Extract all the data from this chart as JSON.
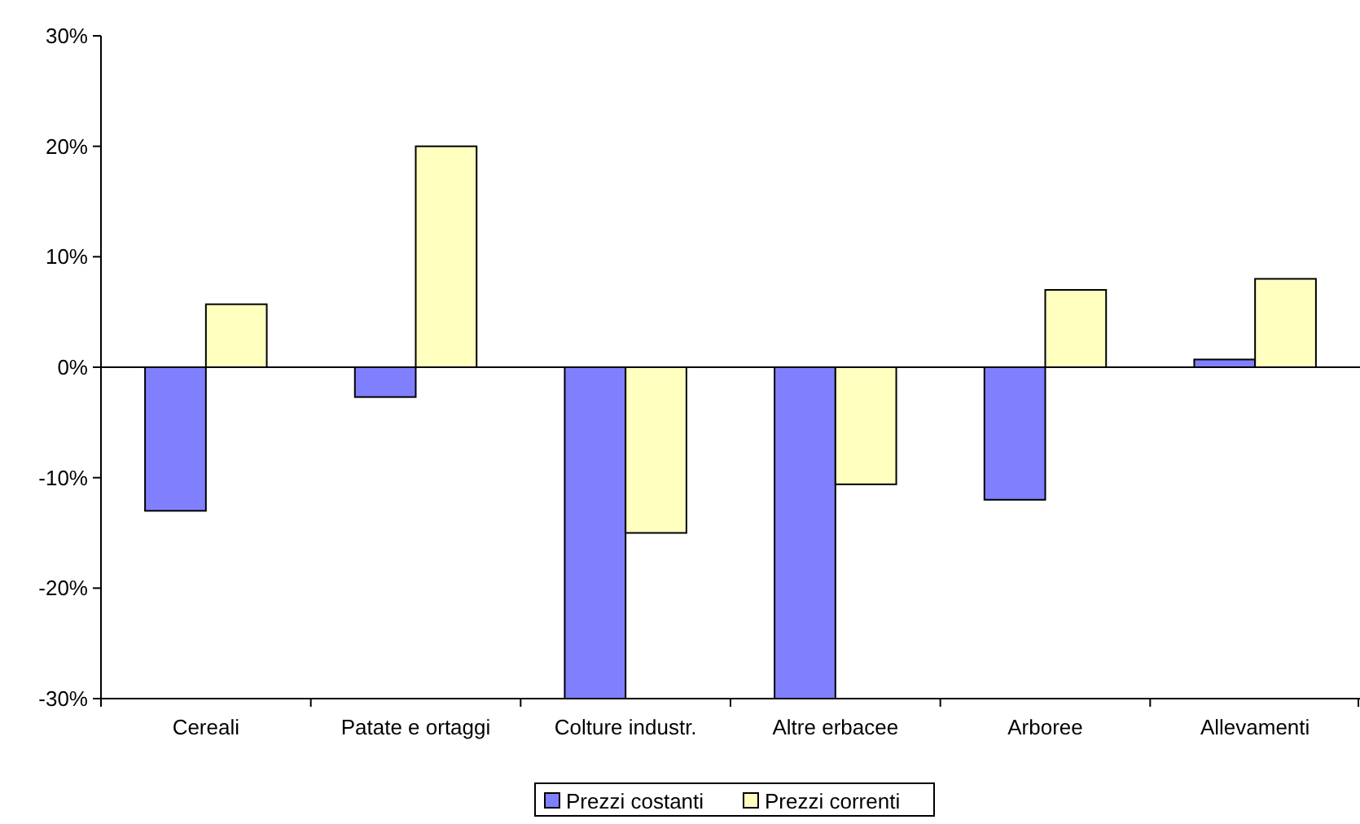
{
  "chart_data": {
    "type": "bar",
    "categories": [
      "Cereali",
      "Patate e ortaggi",
      "Colture industr.",
      "Altre erbacee",
      "Arboree",
      "Allevamenti"
    ],
    "series": [
      {
        "name": "Prezzi costanti",
        "color": "#8080ff",
        "values": [
          -13,
          -2.7,
          -30,
          -30,
          -12,
          0.7
        ]
      },
      {
        "name": "Prezzi correnti",
        "color": "#ffffc0",
        "values": [
          5.7,
          20,
          -15,
          -10.6,
          7,
          8
        ]
      }
    ],
    "ylim": [
      -30,
      30
    ],
    "yticks": [
      {
        "value": -30,
        "label": "-30%"
      },
      {
        "value": -20,
        "label": "-20%"
      },
      {
        "value": -10,
        "label": "-10%"
      },
      {
        "value": 0,
        "label": "0%"
      },
      {
        "value": 10,
        "label": "10%"
      },
      {
        "value": 20,
        "label": "20%"
      },
      {
        "value": 30,
        "label": "30%"
      }
    ],
    "legend": "bottom"
  }
}
